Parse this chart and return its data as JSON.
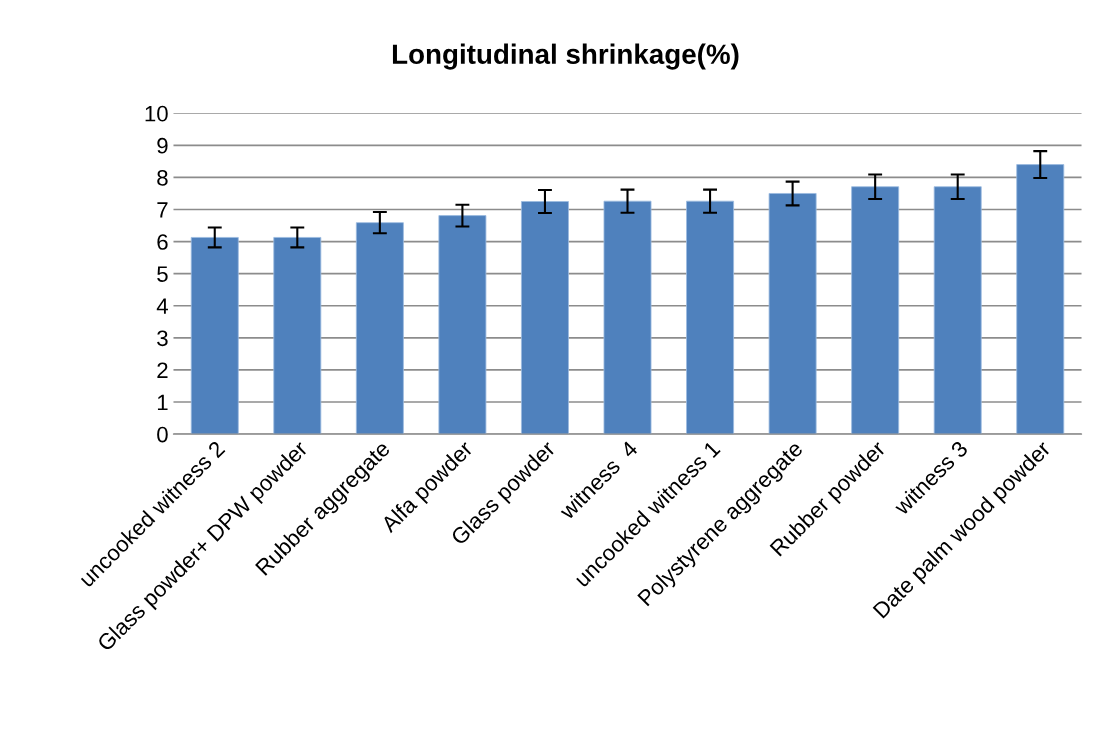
{
  "chart_data": {
    "type": "bar",
    "title": "Longitudinal shrinkage(%)",
    "categories": [
      "uncooked witness 2",
      "Glass powder+ DPW powder",
      "Rubber aggregate",
      "Alfa powder",
      "Glass powder",
      "witness  4",
      "uncooked witness 1",
      "Polystyrene aggregate",
      "Rubber powder",
      "witness 3",
      "Date palm wood powder"
    ],
    "values": [
      6.13,
      6.13,
      6.59,
      6.81,
      7.25,
      7.26,
      7.26,
      7.5,
      7.71,
      7.71,
      8.4
    ],
    "errors": [
      0.31,
      0.31,
      0.33,
      0.34,
      0.36,
      0.36,
      0.36,
      0.37,
      0.38,
      0.38,
      0.42
    ],
    "color": "#4f81bd",
    "ylim": [
      0,
      10
    ],
    "yticks": [
      0,
      1,
      2,
      3,
      4,
      5,
      6,
      7,
      8,
      9,
      10
    ],
    "grid": "y",
    "legend": false
  }
}
